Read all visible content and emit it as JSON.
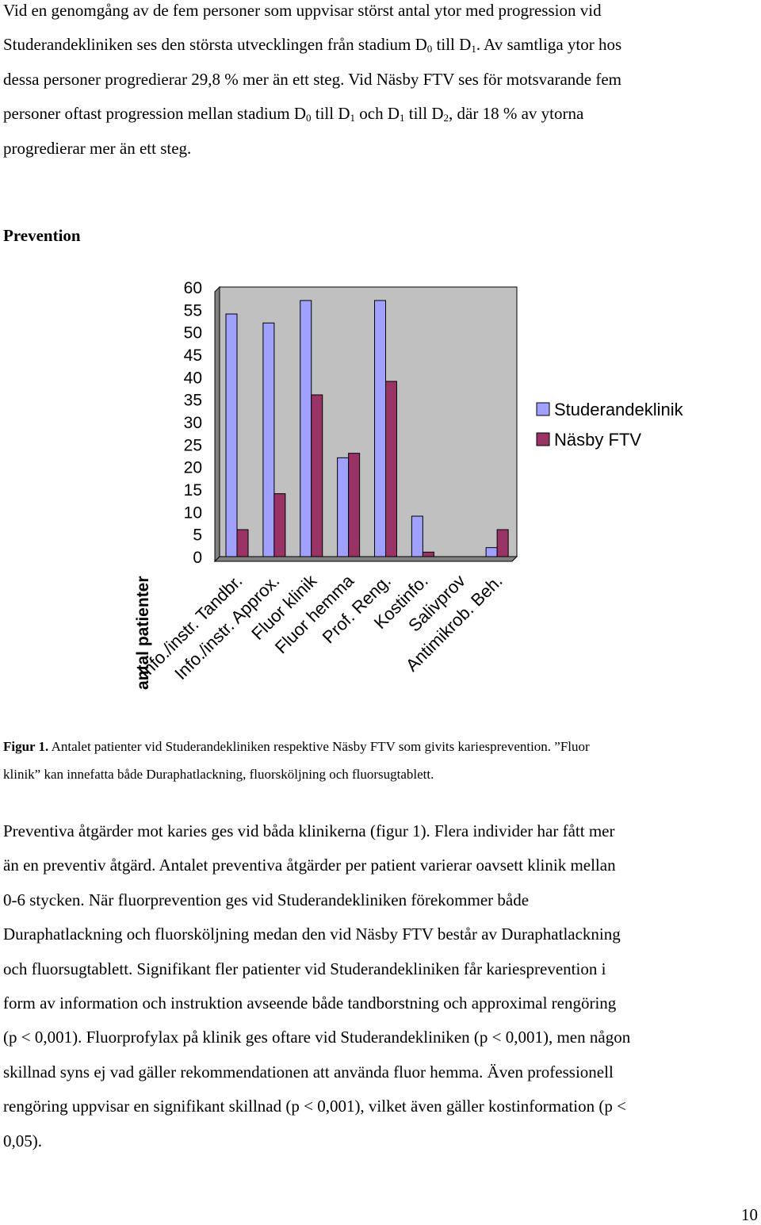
{
  "intro_paragraph": {
    "l1": "Vid en genomgång av de fem personer som uppvisar störst antal ytor med progression vid",
    "l2a": "Studerandekliniken ses den största utvecklingen från stadium D",
    "l2b": " till D",
    "l2c": ". Av samtliga ytor hos",
    "l3": "dessa personer progredierar 29,8 % mer än ett steg. Vid Näsby FTV ses för motsvarande fem",
    "l4a": "personer oftast progression mellan stadium D",
    "l4b": " till D",
    "l4c": " och D",
    "l4d": " till D",
    "l4e": ", där 18 % av ytorna",
    "l5": "progredierar mer än ett steg.",
    "sub0": "0",
    "sub1": "1",
    "sub2": "2"
  },
  "section_heading": "Prevention",
  "chart_data": {
    "type": "bar",
    "ylabel": "antal patienter",
    "ylim": [
      0,
      60
    ],
    "yticks": [
      0,
      5,
      10,
      15,
      20,
      25,
      30,
      35,
      40,
      45,
      50,
      55,
      60
    ],
    "categories": [
      "Info./instr. Tandbr.",
      "Info./instr. Approx.",
      "Fluor klinik",
      "Fluor hemma",
      "Prof. Reng.",
      "Kostinfo.",
      "Salivprov",
      "Antimikrob. Beh."
    ],
    "series": [
      {
        "name": "Studerandeklinik",
        "color": "#a0a0ff",
        "values": [
          54,
          52,
          57,
          22,
          57,
          9,
          0,
          2
        ]
      },
      {
        "name": "Näsby FTV",
        "color": "#993366",
        "values": [
          6,
          14,
          36,
          23,
          39,
          1,
          0,
          6
        ]
      }
    ],
    "plot_background": "#c0c0c0",
    "grid": false,
    "legend_position": "right"
  },
  "caption": {
    "label": "Figur 1.",
    "text1": " Antalet patienter vid Studerandekliniken respektive Näsby FTV som givits kariesprevention. ”Fluor",
    "text2": "klinik” kan innefatta både Duraphatlackning, fluorsköljning och fluorsugtablett."
  },
  "body_paragraph": [
    "Preventiva åtgärder mot karies ges vid båda klinikerna (figur 1). Flera individer har fått mer",
    "än en preventiv åtgärd. Antalet preventiva åtgärder per patient varierar oavsett klinik mellan",
    "0-6 stycken. När fluorprevention ges vid Studerandekliniken förekommer både",
    "Duraphatlackning och fluorsköljning medan den vid Näsby FTV består av Duraphatlackning",
    "och fluorsugtablett. Signifikant fler patienter vid Studerandekliniken får kariesprevention i",
    "form av information och instruktion avseende både tandborstning och approximal rengöring",
    "(p < 0,001). Fluorprofylax på klinik ges oftare vid Studerandekliniken (p < 0,001), men någon",
    "skillnad syns ej vad gäller rekommendationen att använda fluor hemma. Även professionell",
    "rengöring uppvisar en signifikant skillnad (p < 0,001), vilket även gäller kostinformation (p <",
    "0,05)."
  ],
  "page_number": "10"
}
